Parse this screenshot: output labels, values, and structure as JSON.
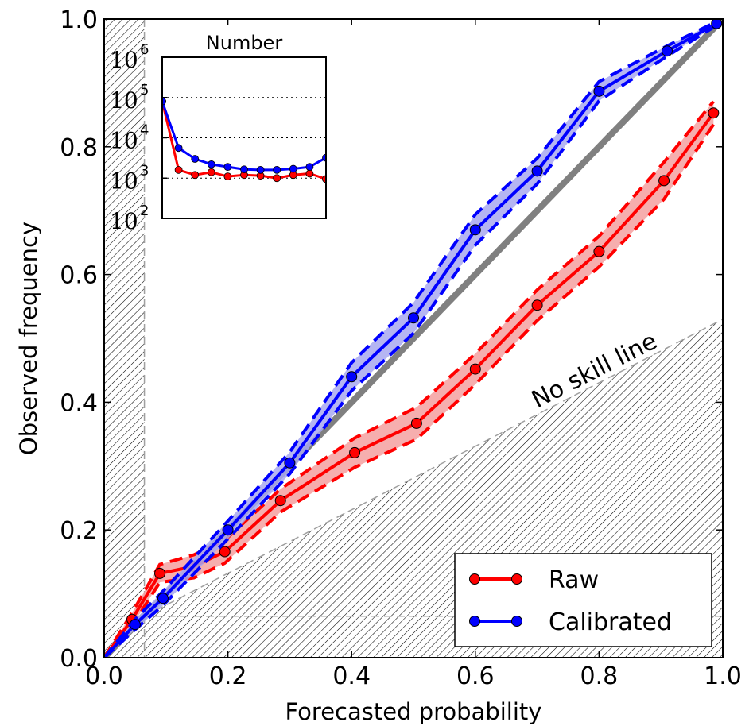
{
  "chart_data": [
    {
      "type": "line",
      "xlabel": "Forecasted probability",
      "ylabel": "Observed frequency",
      "xlim": [
        0.0,
        1.0
      ],
      "ylim": [
        0.0,
        1.0
      ],
      "x_ticks": [
        "0.0",
        "0.2",
        "0.4",
        "0.6",
        "0.8",
        "1.0"
      ],
      "y_ticks": [
        "0.0",
        "0.2",
        "0.4",
        "0.6",
        "0.8",
        "1.0"
      ],
      "legend_position": "lower-right",
      "annotation": "No skill line",
      "climatology": 0.065,
      "no_skill_line": {
        "x": [
          0.065,
          1.0
        ],
        "y": [
          0.065,
          0.53
        ]
      },
      "perfect_line": {
        "x": [
          0.0,
          1.0
        ],
        "y": [
          0.0,
          1.0
        ],
        "color": "#808080"
      },
      "series": [
        {
          "name": "Raw",
          "color": "#ff0000",
          "x": [
            0.0,
            0.045,
            0.09,
            0.145,
            0.195,
            0.285,
            0.405,
            0.505,
            0.6,
            0.7,
            0.8,
            0.905,
            0.985
          ],
          "y": [
            0.0,
            0.06,
            0.132,
            0.143,
            0.166,
            0.246,
            0.321,
            0.367,
            0.452,
            0.552,
            0.636,
            0.747,
            0.853
          ],
          "lower": [
            0.0,
            0.05,
            0.118,
            0.125,
            0.148,
            0.228,
            0.298,
            0.342,
            0.428,
            0.528,
            0.612,
            0.718,
            0.835
          ],
          "upper": [
            0.0,
            0.07,
            0.146,
            0.161,
            0.184,
            0.264,
            0.344,
            0.392,
            0.476,
            0.576,
            0.66,
            0.776,
            0.871
          ]
        },
        {
          "name": "Calibrated",
          "color": "#0000ff",
          "x": [
            0.0,
            0.05,
            0.095,
            0.2,
            0.3,
            0.4,
            0.5,
            0.6,
            0.7,
            0.8,
            0.91,
            0.99
          ],
          "y": [
            0.0,
            0.052,
            0.093,
            0.2,
            0.305,
            0.44,
            0.532,
            0.67,
            0.762,
            0.887,
            0.95,
            0.993
          ],
          "lower": [
            0.0,
            0.044,
            0.082,
            0.186,
            0.288,
            0.418,
            0.508,
            0.646,
            0.742,
            0.872,
            0.942,
            0.99
          ],
          "upper": [
            0.0,
            0.06,
            0.104,
            0.214,
            0.322,
            0.462,
            0.556,
            0.694,
            0.782,
            0.902,
            0.958,
            0.996
          ]
        }
      ]
    },
    {
      "type": "line",
      "title": "Number",
      "y_scale": "log",
      "ylim": [
        100,
        1000000
      ],
      "xlim": [
        0.0,
        1.0
      ],
      "y_tick_base": "10",
      "y_tick_exponents": [
        "2",
        "3",
        "4",
        "5",
        "6"
      ],
      "series": [
        {
          "name": "Raw",
          "color": "#ff0000",
          "x": [
            0.0,
            0.1,
            0.2,
            0.3,
            0.4,
            0.5,
            0.6,
            0.7,
            0.8,
            0.9,
            1.0
          ],
          "y": [
            80000,
            1600,
            1200,
            1400,
            1100,
            1200,
            1150,
            1000,
            1200,
            1300,
            950
          ]
        },
        {
          "name": "Calibrated",
          "color": "#0000ff",
          "x": [
            0.0,
            0.1,
            0.2,
            0.3,
            0.4,
            0.5,
            0.6,
            0.7,
            0.8,
            0.9,
            1.0
          ],
          "y": [
            80000,
            5600,
            3000,
            2200,
            1900,
            1650,
            1600,
            1600,
            1700,
            1900,
            3200
          ]
        }
      ]
    }
  ]
}
